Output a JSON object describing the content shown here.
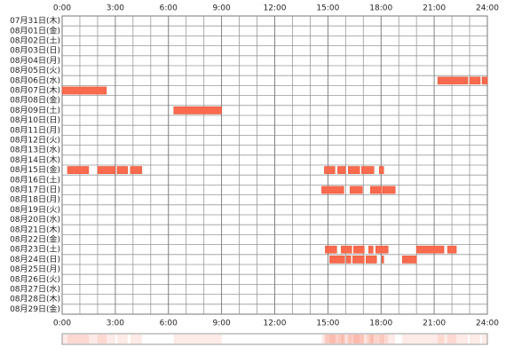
{
  "chart_data": {
    "type": "timeline",
    "color": "#f96a4e",
    "grid": true,
    "xlim": [
      0,
      24
    ],
    "xticks": [
      {
        "value": 0,
        "label": "0:00"
      },
      {
        "value": 3,
        "label": "3:00"
      },
      {
        "value": 6,
        "label": "6:00"
      },
      {
        "value": 9,
        "label": "9:00"
      },
      {
        "value": 12,
        "label": "12:00"
      },
      {
        "value": 15,
        "label": "15:00"
      },
      {
        "value": 18,
        "label": "18:00"
      },
      {
        "value": 21,
        "label": "21:00"
      },
      {
        "value": 24,
        "label": "24:00"
      }
    ],
    "rows": [
      {
        "label": "07月31日(木)",
        "segments": []
      },
      {
        "label": "08月01日(金)",
        "segments": []
      },
      {
        "label": "08月02日(土)",
        "segments": []
      },
      {
        "label": "08月03日(日)",
        "segments": []
      },
      {
        "label": "08月04日(月)",
        "segments": []
      },
      {
        "label": "08月05日(火)",
        "segments": []
      },
      {
        "label": "08月06日(水)",
        "segments": [
          [
            21.2,
            22.9
          ],
          [
            23.0,
            23.6
          ],
          [
            23.7,
            24
          ]
        ]
      },
      {
        "label": "08月07日(木)",
        "segments": [
          [
            0,
            2.5
          ]
        ]
      },
      {
        "label": "08月08日(金)",
        "segments": []
      },
      {
        "label": "08月09日(土)",
        "segments": [
          [
            6.3,
            9.0
          ]
        ]
      },
      {
        "label": "08月10日(日)",
        "segments": []
      },
      {
        "label": "08月11日(月)",
        "segments": []
      },
      {
        "label": "08月12日(火)",
        "segments": []
      },
      {
        "label": "08月13日(水)",
        "segments": []
      },
      {
        "label": "08月14日(木)",
        "segments": []
      },
      {
        "label": "08月15日(金)",
        "segments": [
          [
            0.3,
            1.5
          ],
          [
            2.0,
            3.0
          ],
          [
            3.1,
            3.7
          ],
          [
            3.85,
            4.5
          ],
          [
            14.8,
            15.4
          ],
          [
            15.55,
            16.0
          ],
          [
            16.15,
            16.8
          ],
          [
            16.9,
            17.6
          ],
          [
            17.9,
            18.15
          ]
        ]
      },
      {
        "label": "08月16日(土)",
        "segments": []
      },
      {
        "label": "08月17日(日)",
        "segments": [
          [
            14.65,
            15.9
          ],
          [
            16.25,
            16.95
          ],
          [
            17.4,
            18.05
          ],
          [
            18.1,
            18.8
          ]
        ]
      },
      {
        "label": "08月18日(月)",
        "segments": []
      },
      {
        "label": "08月19日(火)",
        "segments": []
      },
      {
        "label": "08月20日(水)",
        "segments": []
      },
      {
        "label": "08月21日(木)",
        "segments": []
      },
      {
        "label": "08月22日(金)",
        "segments": []
      },
      {
        "label": "08月23日(土)",
        "segments": [
          [
            14.85,
            15.5
          ],
          [
            15.75,
            16.35
          ],
          [
            16.45,
            17.05
          ],
          [
            17.3,
            17.55
          ],
          [
            17.7,
            18.4
          ],
          [
            20.0,
            21.55
          ],
          [
            21.75,
            22.25
          ]
        ]
      },
      {
        "label": "08月24日(日)",
        "segments": [
          [
            15.1,
            15.95
          ],
          [
            16.05,
            16.3
          ],
          [
            16.4,
            17.05
          ],
          [
            17.15,
            17.75
          ],
          [
            18.05,
            18.15
          ],
          [
            19.2,
            20.0
          ]
        ]
      },
      {
        "label": "08月25日(月)",
        "segments": []
      },
      {
        "label": "08月26日(火)",
        "segments": []
      },
      {
        "label": "08月27日(水)",
        "segments": []
      },
      {
        "label": "08月28日(木)",
        "segments": []
      },
      {
        "label": "08月29日(金)",
        "segments": []
      }
    ]
  }
}
